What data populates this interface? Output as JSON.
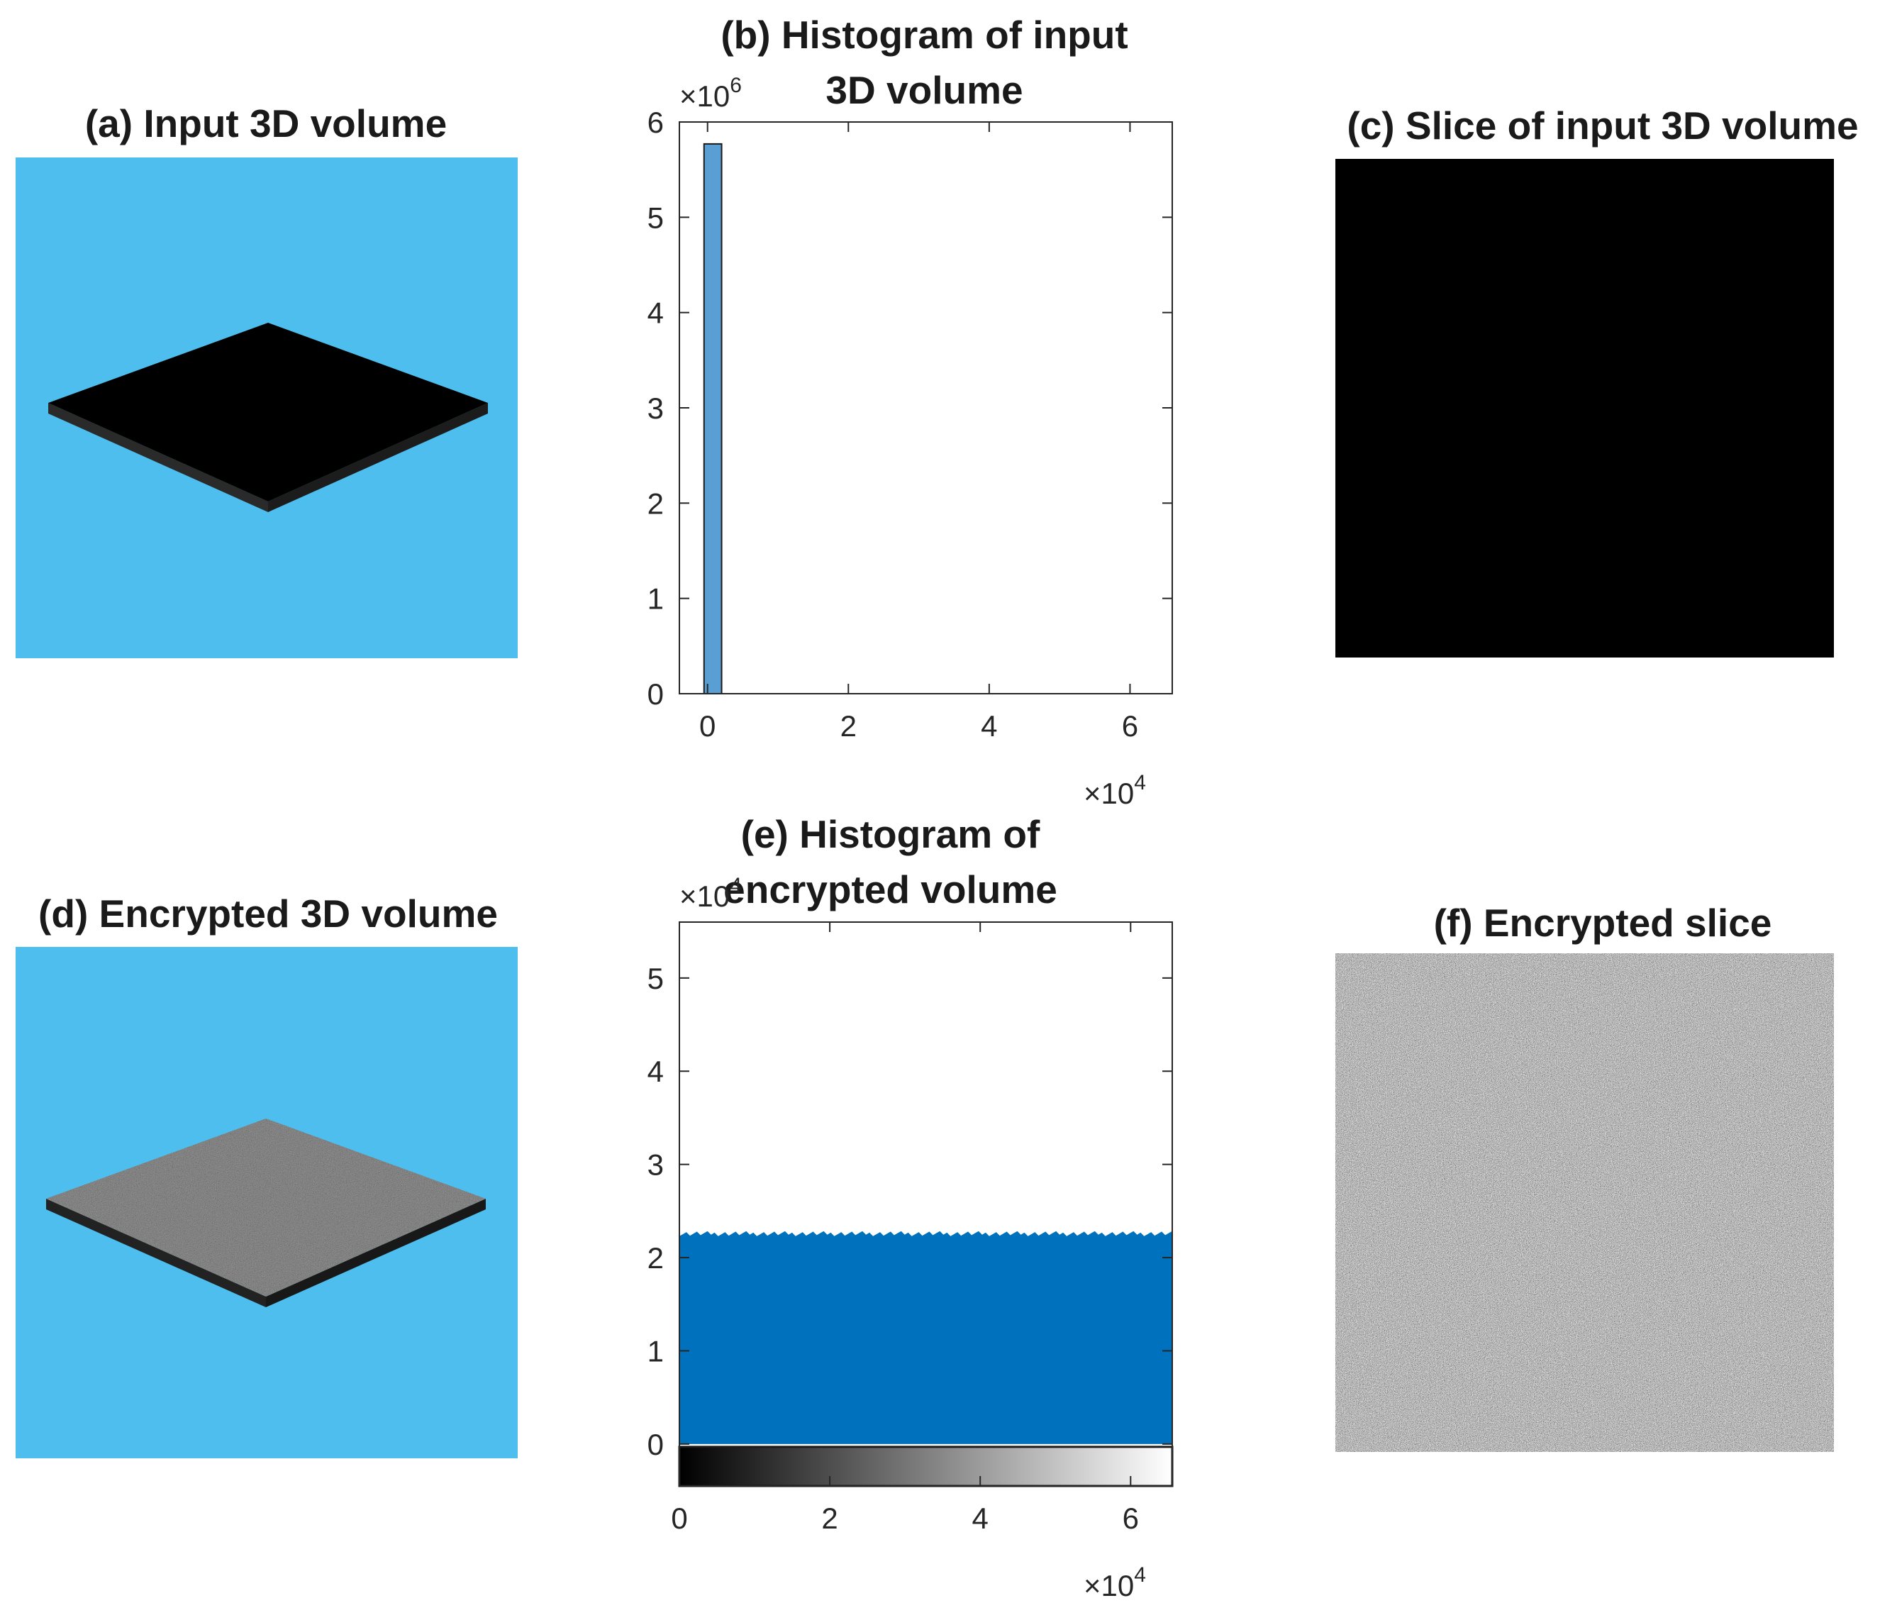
{
  "colors": {
    "volume_background": "#4dbeed",
    "histogram_bar": "#0072bd",
    "histogram_bar_input": "#5a9fd4",
    "slab": "#000000"
  },
  "panels": {
    "a": {
      "title": "(a) Input 3D volume"
    },
    "c": {
      "title": "(c) Slice of input 3D volume"
    },
    "d": {
      "title": "(d) Encrypted 3D volume"
    },
    "f": {
      "title": "(f) Encrypted slice"
    }
  },
  "chart_data": [
    {
      "id": "b",
      "type": "bar",
      "title_lines": [
        "(b) Histogram of input",
        "3D volume"
      ],
      "xlim": [
        -0.4,
        6.6
      ],
      "ylim": [
        0,
        6
      ],
      "x_ticks": [
        0,
        2,
        4,
        6
      ],
      "y_ticks": [
        0,
        1,
        2,
        3,
        4,
        5,
        6
      ],
      "x_exponent": "×10",
      "x_exponent_power": "4",
      "y_exponent": "×10",
      "y_exponent_power": "6",
      "bars": [
        {
          "x0": -0.05,
          "x1": 0.2,
          "value": 5.77
        }
      ]
    },
    {
      "id": "e",
      "type": "area",
      "title_lines": [
        "(e) Histogram of",
        "encrypted volume"
      ],
      "xlim": [
        0,
        6.5536
      ],
      "ylim": [
        -0.45,
        5.6
      ],
      "x_ticks": [
        0,
        2,
        4,
        6
      ],
      "y_ticks": [
        0,
        1,
        2,
        3,
        4,
        5
      ],
      "x_exponent": "×10",
      "x_exponent_power": "4",
      "y_exponent": "×10",
      "y_exponent_power": "4",
      "level": 2.25,
      "colorbar": "gray"
    }
  ]
}
